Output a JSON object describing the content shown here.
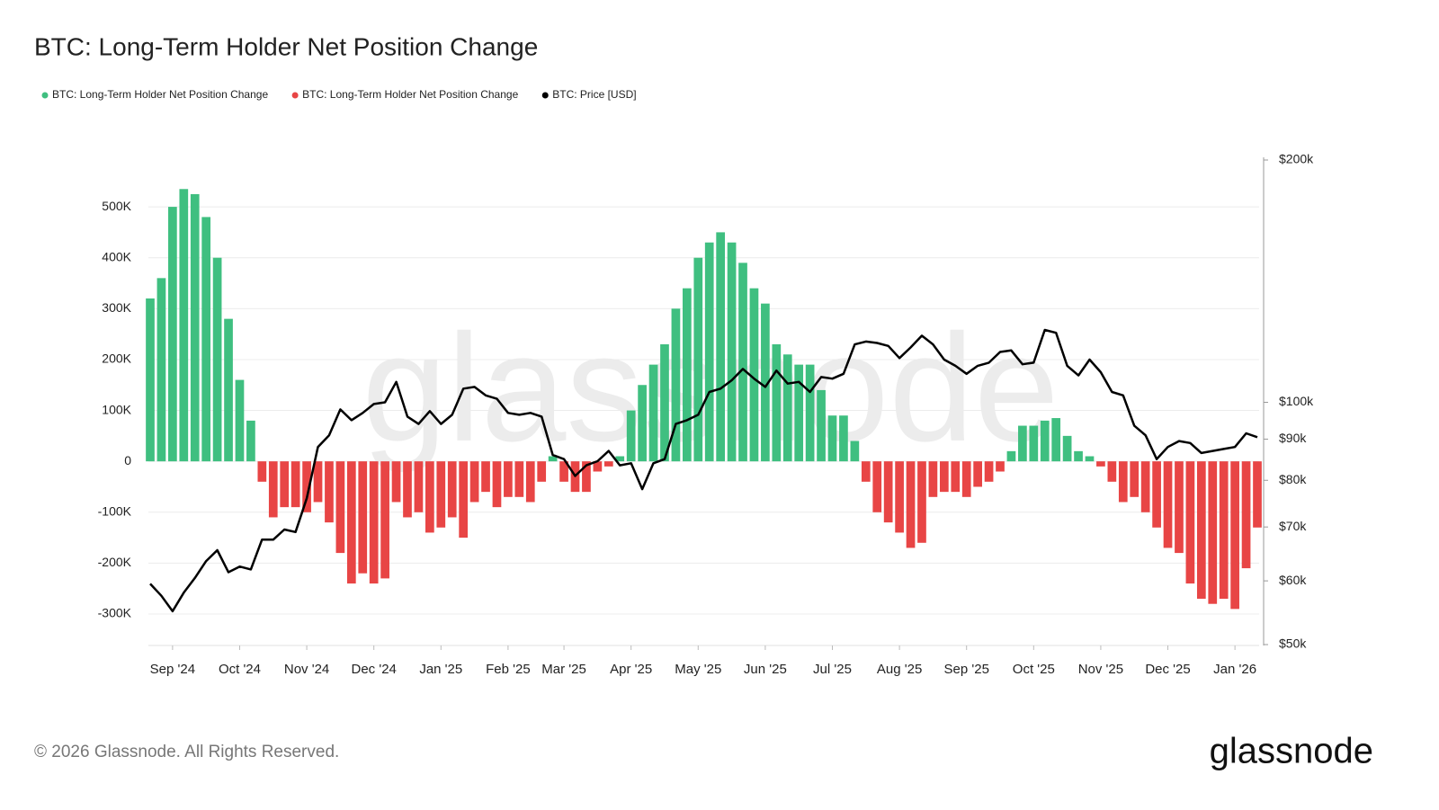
{
  "chart_data": {
    "type": "bar-line",
    "title": "BTC: Long-Term Holder Net Position Change",
    "watermark": "glassnode",
    "footer": "© 2026 Glassnode. All Rights Reserved.",
    "logo": "glassnode",
    "categories": [
      null,
      null,
      "Sep '24",
      null,
      null,
      null,
      null,
      null,
      "Oct '24",
      null,
      null,
      null,
      null,
      null,
      "Nov '24",
      null,
      null,
      null,
      null,
      null,
      "Dec '24",
      null,
      null,
      null,
      null,
      null,
      "Jan '25",
      null,
      null,
      null,
      null,
      null,
      "Feb '25",
      null,
      null,
      null,
      null,
      "Mar '25",
      null,
      null,
      null,
      null,
      null,
      "Apr '25",
      null,
      null,
      null,
      null,
      null,
      "May '25",
      null,
      null,
      null,
      null,
      null,
      "Jun '25",
      null,
      null,
      null,
      null,
      null,
      "Jul '25",
      null,
      null,
      null,
      null,
      null,
      "Aug '25",
      null,
      null,
      null,
      null,
      null,
      "Sep '25",
      null,
      null,
      null,
      null,
      null,
      "Oct '25",
      null,
      null,
      null,
      null,
      null,
      "Nov '25",
      null,
      null,
      null,
      null,
      null,
      "Dec '25",
      null,
      null,
      null,
      null,
      null,
      "Jan '26",
      null,
      null
    ],
    "series": [
      {
        "name": "BTC: Long-Term Holder Net Position Change",
        "color": "#3fbf80",
        "values": [
          320000,
          360000,
          500000,
          535000,
          525000,
          480000,
          400000,
          280000,
          160000,
          80000,
          null,
          null,
          null,
          null,
          null,
          null,
          null,
          null,
          null,
          null,
          null,
          null,
          null,
          null,
          null,
          null,
          null,
          null,
          null,
          null,
          null,
          null,
          null,
          null,
          null,
          null,
          10000,
          null,
          null,
          null,
          null,
          null,
          10000,
          100000,
          150000,
          190000,
          230000,
          300000,
          340000,
          400000,
          430000,
          450000,
          430000,
          390000,
          340000,
          310000,
          230000,
          210000,
          190000,
          190000,
          140000,
          90000,
          90000,
          40000,
          null,
          null,
          null,
          null,
          null,
          null,
          null,
          null,
          null,
          null,
          null,
          null,
          null,
          20000,
          70000,
          70000,
          80000,
          85000,
          50000,
          20000,
          10000,
          null,
          null,
          null,
          null,
          null,
          null,
          null,
          null,
          null,
          null,
          null,
          null,
          null,
          null,
          null
        ]
      },
      {
        "name": "BTC: Long-Term Holder Net Position Change",
        "color": "#e84545",
        "values": [
          null,
          null,
          null,
          null,
          null,
          null,
          null,
          null,
          null,
          null,
          -40000,
          -110000,
          -90000,
          -90000,
          -100000,
          -80000,
          -120000,
          -180000,
          -240000,
          -220000,
          -240000,
          -230000,
          -80000,
          -110000,
          -100000,
          -140000,
          -130000,
          -110000,
          -150000,
          -80000,
          -60000,
          -90000,
          -70000,
          -70000,
          -80000,
          -40000,
          null,
          -40000,
          -60000,
          -60000,
          -20000,
          -10000,
          null,
          null,
          null,
          null,
          null,
          null,
          null,
          null,
          null,
          null,
          null,
          null,
          null,
          null,
          null,
          null,
          null,
          null,
          null,
          null,
          null,
          null,
          -40000,
          -100000,
          -120000,
          -140000,
          -170000,
          -160000,
          -70000,
          -60000,
          -60000,
          -70000,
          -50000,
          -40000,
          -20000,
          null,
          null,
          null,
          null,
          null,
          null,
          null,
          null,
          -10000,
          -40000,
          -80000,
          -70000,
          -100000,
          -130000,
          -170000,
          -180000,
          -240000,
          -270000,
          -280000,
          -270000,
          -290000,
          -210000,
          -130000
        ]
      },
      {
        "name": "BTC: Price [USD]",
        "color": "#000000",
        "axis": "y2",
        "values": [
          59500,
          57500,
          55000,
          58000,
          60500,
          63500,
          65500,
          61500,
          62500,
          62000,
          67500,
          67500,
          69500,
          69000,
          76000,
          88000,
          91000,
          98000,
          95000,
          97000,
          99500,
          100000,
          106000,
          96000,
          94000,
          97500,
          94000,
          96500,
          104000,
          104500,
          102000,
          101000,
          97000,
          96500,
          97000,
          96000,
          86000,
          85000,
          81000,
          83500,
          84500,
          87000,
          83500,
          84000,
          78000,
          84000,
          85000,
          94000,
          95000,
          96500,
          103000,
          104000,
          106500,
          110000,
          107000,
          104500,
          109500,
          105500,
          106000,
          103000,
          107500,
          107000,
          108500,
          118000,
          119000,
          118500,
          117500,
          113500,
          117000,
          121000,
          118000,
          113000,
          111000,
          108500,
          111000,
          112000,
          115500,
          116000,
          111500,
          112000,
          123000,
          122000,
          111000,
          108000,
          113000,
          109000,
          103000,
          102000,
          93500,
          91000,
          85000,
          88000,
          89500,
          89000,
          86500,
          87000,
          87500,
          88000,
          91500,
          90500
        ]
      }
    ],
    "ylim": [
      -360000,
      592000
    ],
    "yticks": [
      {
        "value": -300000,
        "label": "-300K"
      },
      {
        "value": -200000,
        "label": "-200K"
      },
      {
        "value": -100000,
        "label": "-100K"
      },
      0,
      {
        "value": 100000,
        "label": "100K"
      },
      {
        "value": 200000,
        "label": "200K"
      },
      {
        "value": 300000,
        "label": "300K"
      },
      {
        "value": 400000,
        "label": "400K"
      },
      {
        "value": 500000,
        "label": "500K"
      }
    ],
    "y2lim": [
      50000,
      200000
    ],
    "y2log": true,
    "y2ticks": [
      {
        "value": 50000,
        "label": "$50k"
      },
      {
        "value": 60000,
        "label": "$60k"
      },
      {
        "value": 70000,
        "label": "$70k"
      },
      {
        "value": 80000,
        "label": "$80k"
      },
      {
        "value": 90000,
        "label": "$90k"
      },
      {
        "value": 100000,
        "label": "$100k"
      },
      {
        "value": 200000,
        "label": "$200k"
      }
    ],
    "grid": true
  }
}
